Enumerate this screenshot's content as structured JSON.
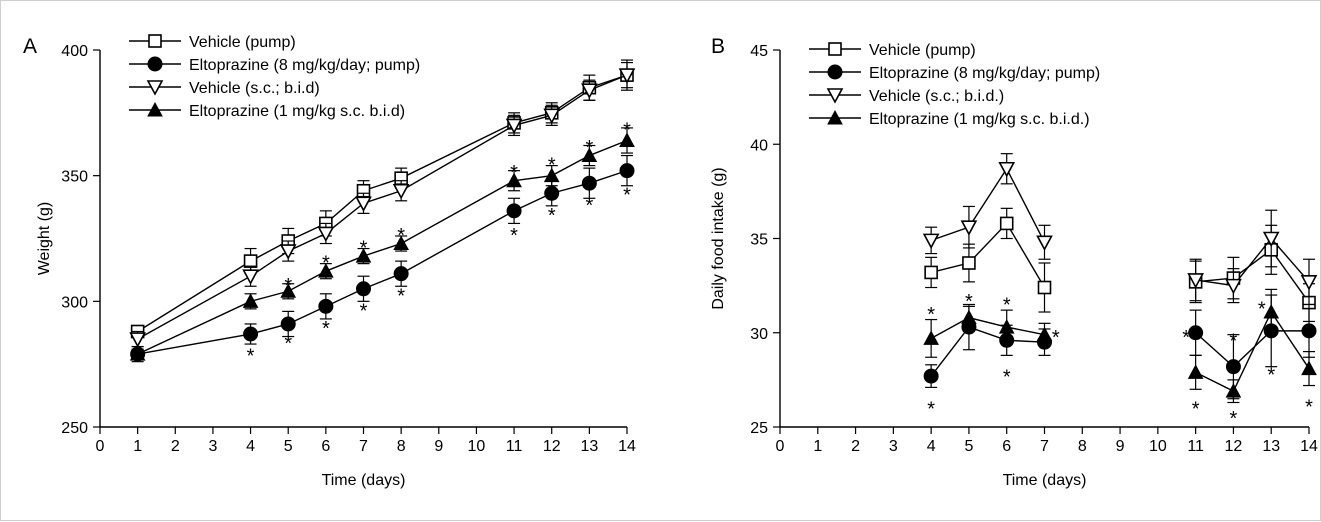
{
  "chart_data": [
    {
      "panel": "A",
      "type": "line",
      "xlabel": "Time (days)",
      "ylabel": "Weight (g)",
      "xlim": [
        0,
        14
      ],
      "ylim": [
        250,
        400
      ],
      "x_ticks": [
        0,
        1,
        2,
        3,
        4,
        5,
        6,
        7,
        8,
        9,
        10,
        11,
        12,
        13,
        14
      ],
      "y_ticks": [
        250,
        300,
        350,
        400
      ],
      "legend_position": "top-left",
      "grid": false,
      "series": [
        {
          "name": "Vehicle (pump)",
          "marker": "square-open",
          "x": [
            1,
            4,
            5,
            6,
            7,
            8,
            11,
            12,
            13,
            14
          ],
          "y": [
            288,
            316,
            324,
            331,
            344,
            349,
            371,
            375,
            385,
            390
          ],
          "err": [
            2,
            5,
            5,
            5,
            4,
            4,
            4,
            4,
            5,
            6
          ]
        },
        {
          "name": "Eltoprazine (8 mg/kg/day; pump)",
          "marker": "circle-filled",
          "x": [
            1,
            4,
            5,
            6,
            7,
            8,
            11,
            12,
            13,
            14
          ],
          "y": [
            279,
            287,
            291,
            298,
            305,
            311,
            336,
            343,
            347,
            352
          ],
          "err": [
            3,
            4,
            5,
            5,
            5,
            5,
            5,
            5,
            6,
            6
          ]
        },
        {
          "name": "Vehicle (s.c.; b.i.d)",
          "marker": "triangle-down-open",
          "x": [
            1,
            4,
            5,
            6,
            7,
            8,
            11,
            12,
            13,
            14
          ],
          "y": [
            285,
            310,
            320,
            327,
            339,
            344,
            370,
            374,
            384,
            390
          ],
          "err": [
            3,
            4,
            4,
            4,
            4,
            4,
            4,
            4,
            4,
            5
          ]
        },
        {
          "name": "Eltoprazine (1 mg/kg s.c. b.i.d)",
          "marker": "triangle-up-filled",
          "x": [
            1,
            4,
            5,
            6,
            7,
            8,
            11,
            12,
            13,
            14
          ],
          "y": [
            279,
            300,
            304,
            312,
            318,
            323,
            348,
            350,
            358,
            364
          ],
          "err": [
            2,
            3,
            3,
            3,
            3,
            3,
            4,
            4,
            4,
            5
          ]
        }
      ],
      "annotations": [
        {
          "text": "*",
          "x": 4,
          "y": 280
        },
        {
          "text": "*",
          "x": 5,
          "y": 285
        },
        {
          "text": "*",
          "x": 6,
          "y": 291
        },
        {
          "text": "*",
          "x": 7,
          "y": 298
        },
        {
          "text": "*",
          "x": 8,
          "y": 304
        },
        {
          "text": "*",
          "x": 11,
          "y": 328
        },
        {
          "text": "*",
          "x": 12,
          "y": 336
        },
        {
          "text": "*",
          "x": 13,
          "y": 340
        },
        {
          "text": "*",
          "x": 14,
          "y": 344
        },
        {
          "text": "*",
          "x": 5,
          "y": 308
        },
        {
          "text": "*",
          "x": 6,
          "y": 317
        },
        {
          "text": "*",
          "x": 7,
          "y": 323
        },
        {
          "text": "*",
          "x": 8,
          "y": 328
        },
        {
          "text": "*",
          "x": 11,
          "y": 353
        },
        {
          "text": "*",
          "x": 12,
          "y": 356
        },
        {
          "text": "*",
          "x": 13,
          "y": 363
        },
        {
          "text": "*",
          "x": 14,
          "y": 370
        }
      ]
    },
    {
      "panel": "B",
      "type": "line",
      "xlabel": "Time (days)",
      "ylabel": "Daily food intake (g)",
      "xlim": [
        0,
        14
      ],
      "ylim": [
        25,
        45
      ],
      "x_ticks": [
        0,
        1,
        2,
        3,
        4,
        5,
        6,
        7,
        8,
        9,
        10,
        11,
        12,
        13,
        14
      ],
      "y_ticks": [
        25,
        30,
        35,
        40,
        45
      ],
      "legend_position": "top-left",
      "grid": false,
      "series": [
        {
          "name": "Vehicle (pump)",
          "marker": "square-open",
          "segments": [
            {
              "x": [
                4,
                5,
                6,
                7
              ],
              "y": [
                33.2,
                33.7,
                35.8,
                32.4
              ],
              "err": [
                0.8,
                1.0,
                0.8,
                1.3
              ]
            },
            {
              "x": [
                11,
                12,
                13,
                14
              ],
              "y": [
                32.7,
                32.9,
                34.4,
                31.6
              ],
              "err": [
                1.1,
                1.1,
                1.3,
                1.0
              ]
            }
          ]
        },
        {
          "name": "Eltoprazine (8 mg/kg/day; pump)",
          "marker": "circle-filled",
          "segments": [
            {
              "x": [
                4,
                5,
                6,
                7
              ],
              "y": [
                27.7,
                30.3,
                29.6,
                29.5
              ],
              "err": [
                0.6,
                1.2,
                0.8,
                0.7
              ]
            },
            {
              "x": [
                11,
                12,
                13,
                14
              ],
              "y": [
                30.0,
                28.2,
                30.1,
                30.1
              ],
              "err": [
                1.2,
                1.7,
                1.9,
                1.4
              ]
            }
          ]
        },
        {
          "name": "Vehicle (s.c.; b.i.d.)",
          "marker": "triangle-down-open",
          "segments": [
            {
              "x": [
                4,
                5,
                6,
                7
              ],
              "y": [
                34.9,
                35.6,
                38.7,
                34.8
              ],
              "err": [
                0.7,
                1.1,
                0.8,
                0.9
              ]
            },
            {
              "x": [
                11,
                12,
                13,
                14
              ],
              "y": [
                32.8,
                32.5,
                35.0,
                32.7
              ],
              "err": [
                1.1,
                0.9,
                1.5,
                1.2
              ]
            }
          ]
        },
        {
          "name": "Eltoprazine (1 mg/kg s.c. b.i.d.)",
          "marker": "triangle-up-filled",
          "segments": [
            {
              "x": [
                4,
                5,
                6,
                7
              ],
              "y": [
                29.7,
                30.8,
                30.3,
                29.9
              ],
              "err": [
                1.0,
                0.6,
                0.9,
                0.6
              ]
            },
            {
              "x": [
                11,
                12,
                13,
                14
              ],
              "y": [
                27.9,
                26.9,
                31.1,
                28.1
              ],
              "err": [
                0.9,
                0.6,
                1.2,
                0.9
              ]
            }
          ]
        }
      ],
      "annotations": [
        {
          "text": "*",
          "x": 4,
          "y": 26.2
        },
        {
          "text": "*",
          "x": 4,
          "y": 31.2
        },
        {
          "text": "*",
          "x": 5,
          "y": 31.9
        },
        {
          "text": "*",
          "x": 6,
          "y": 27.9
        },
        {
          "text": "*",
          "x": 6,
          "y": 31.7
        },
        {
          "text": "*",
          "x": 7.3,
          "y": 30.0
        },
        {
          "text": "*",
          "x": 10.75,
          "y": 30.0
        },
        {
          "text": "*",
          "x": 11,
          "y": 26.2
        },
        {
          "text": "*",
          "x": 12,
          "y": 25.7
        },
        {
          "text": "*",
          "x": 12,
          "y": 29.8
        },
        {
          "text": "*",
          "x": 12.75,
          "y": 31.5
        },
        {
          "text": "*",
          "x": 13,
          "y": 28.0
        },
        {
          "text": "*",
          "x": 14,
          "y": 26.3
        }
      ]
    }
  ]
}
